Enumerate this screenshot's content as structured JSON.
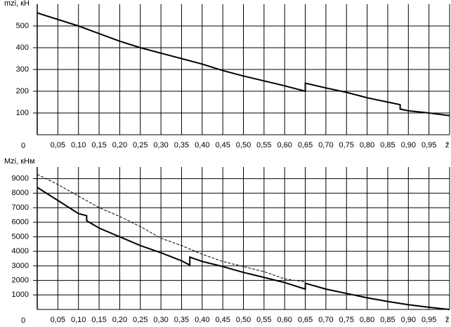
{
  "chart_data": [
    {
      "type": "line",
      "ylabel": "mzi, кН",
      "xlabel": "z̃",
      "xlim": [
        0,
        1
      ],
      "ylim": [
        0,
        600
      ],
      "xticks": [
        {
          "value": 0.05,
          "label": "0,05"
        },
        {
          "value": 0.1,
          "label": "0,10"
        },
        {
          "value": 0.15,
          "label": "0,15"
        },
        {
          "value": 0.2,
          "label": "0,20"
        },
        {
          "value": 0.25,
          "label": "0,25"
        },
        {
          "value": 0.3,
          "label": "0,30"
        },
        {
          "value": 0.35,
          "label": "0,35"
        },
        {
          "value": 0.4,
          "label": "0,40"
        },
        {
          "value": 0.45,
          "label": "0,45"
        },
        {
          "value": 0.5,
          "label": "0,50"
        },
        {
          "value": 0.55,
          "label": "0,55"
        },
        {
          "value": 0.6,
          "label": "0,60"
        },
        {
          "value": 0.65,
          "label": "0,65"
        },
        {
          "value": 0.7,
          "label": "0,70"
        },
        {
          "value": 0.75,
          "label": "0,75"
        },
        {
          "value": 0.8,
          "label": "0,80"
        },
        {
          "value": 0.85,
          "label": "0,85"
        },
        {
          "value": 0.9,
          "label": "0,90"
        },
        {
          "value": 0.95,
          "label": "0,95"
        }
      ],
      "yticks": [
        0,
        100,
        200,
        300,
        400,
        500
      ],
      "grid": true,
      "series": [
        {
          "color": "#000000",
          "line_style": "solid",
          "x": [
            0,
            0.1,
            0.2,
            0.25,
            0.35,
            0.4,
            0.45,
            0.5,
            0.6,
            0.65,
            0.65,
            0.7,
            0.75,
            0.8,
            0.85,
            0.88,
            0.88,
            0.9,
            0.95,
            1.0
          ],
          "values": [
            560,
            500,
            430,
            400,
            350,
            325,
            295,
            270,
            225,
            200,
            237,
            215,
            195,
            170,
            150,
            138,
            118,
            110,
            100,
            88
          ]
        }
      ]
    },
    {
      "type": "line",
      "ylabel": "Mzi, кНм",
      "xlabel": "z̃",
      "xlim": [
        0,
        1
      ],
      "ylim": [
        0,
        9800
      ],
      "xticks": [
        {
          "value": 0.05,
          "label": "0,05"
        },
        {
          "value": 0.1,
          "label": "0,10"
        },
        {
          "value": 0.15,
          "label": "0,15"
        },
        {
          "value": 0.2,
          "label": "0,20"
        },
        {
          "value": 0.25,
          "label": "0,25"
        },
        {
          "value": 0.3,
          "label": "0,30"
        },
        {
          "value": 0.35,
          "label": "0,35"
        },
        {
          "value": 0.4,
          "label": "0,40"
        },
        {
          "value": 0.45,
          "label": "0,45"
        },
        {
          "value": 0.5,
          "label": "0,50"
        },
        {
          "value": 0.55,
          "label": "0,55"
        },
        {
          "value": 0.6,
          "label": "0,60"
        },
        {
          "value": 0.65,
          "label": "0,65"
        },
        {
          "value": 0.7,
          "label": "0,70"
        },
        {
          "value": 0.75,
          "label": "0,75"
        },
        {
          "value": 0.8,
          "label": "0,80"
        },
        {
          "value": 0.85,
          "label": "0,85"
        },
        {
          "value": 0.9,
          "label": "0,90"
        },
        {
          "value": 0.95,
          "label": "0,95"
        }
      ],
      "yticks": [
        0,
        1000,
        2000,
        3000,
        4000,
        5000,
        6000,
        7000,
        8000,
        9000
      ],
      "grid": true,
      "series": [
        {
          "color": "#000000",
          "line_style": "solid",
          "x": [
            0,
            0.05,
            0.1,
            0.12,
            0.12,
            0.15,
            0.2,
            0.25,
            0.3,
            0.35,
            0.37,
            0.37,
            0.4,
            0.45,
            0.5,
            0.55,
            0.6,
            0.65,
            0.65,
            0.7,
            0.75,
            0.8,
            0.85,
            0.9,
            0.95,
            1.0
          ],
          "values": [
            8400,
            7500,
            6600,
            6450,
            6100,
            5600,
            5000,
            4400,
            3900,
            3350,
            3050,
            3600,
            3300,
            2950,
            2550,
            2200,
            1850,
            1400,
            1800,
            1400,
            1100,
            800,
            550,
            330,
            150,
            0
          ]
        },
        {
          "color": "#000000",
          "line_style": "dashed",
          "x": [
            0,
            0.05,
            0.1,
            0.15,
            0.2,
            0.25,
            0.3,
            0.35,
            0.4,
            0.45,
            0.5,
            0.55,
            0.6,
            0.65
          ],
          "values": [
            9300,
            8600,
            7800,
            7000,
            6400,
            5700,
            4900,
            4400,
            3800,
            3300,
            2950,
            2600,
            2100,
            1900
          ]
        }
      ]
    }
  ]
}
